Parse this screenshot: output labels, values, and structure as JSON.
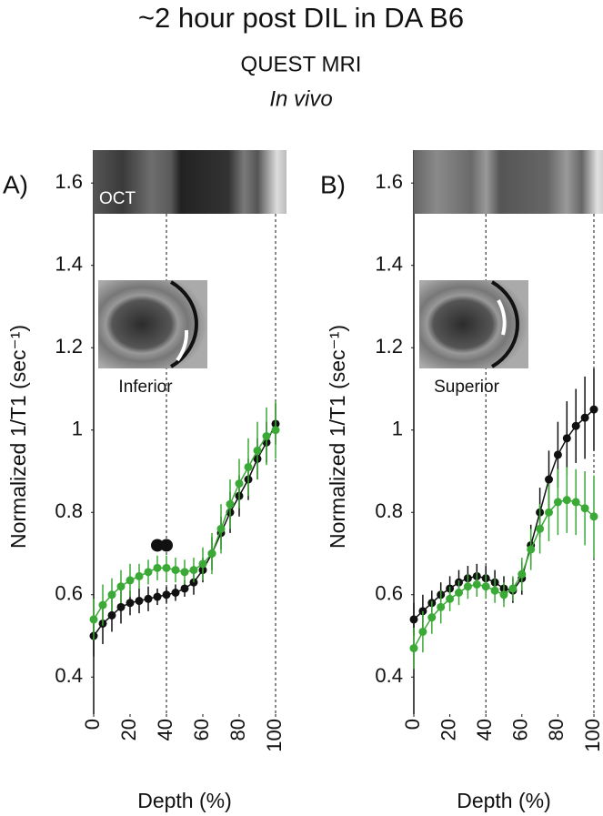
{
  "header": {
    "title": "~2 hour post DIL in DA B6",
    "subtitle": "QUEST MRI",
    "note": "In vivo"
  },
  "chart_data": [
    {
      "type": "line",
      "panel_label": "A)",
      "image_label": "OCT",
      "inset_label": "Inferior",
      "x_label": "Depth (%)",
      "y_label": "Normalized 1/T1 (sec⁻¹)",
      "x": [
        0,
        5,
        10,
        15,
        20,
        25,
        30,
        35,
        40,
        45,
        50,
        55,
        60,
        65,
        70,
        75,
        80,
        85,
        90,
        95,
        100
      ],
      "series": [
        {
          "color": "#111111",
          "values": [
            0.5,
            0.53,
            0.55,
            0.57,
            0.58,
            0.585,
            0.59,
            0.595,
            0.6,
            0.605,
            0.615,
            0.63,
            0.66,
            0.7,
            0.75,
            0.8,
            0.84,
            0.88,
            0.93,
            0.97,
            1.015
          ],
          "errors": [
            0.05,
            0.05,
            0.04,
            0.04,
            0.03,
            0.03,
            0.03,
            0.02,
            0.02,
            0.02,
            0.02,
            0.03,
            0.03,
            0.04,
            0.04,
            0.05,
            0.05,
            0.05,
            0.05,
            0.05,
            0.05
          ]
        },
        {
          "color": "#3aa935",
          "values": [
            0.54,
            0.575,
            0.6,
            0.62,
            0.635,
            0.645,
            0.655,
            0.665,
            0.665,
            0.66,
            0.655,
            0.66,
            0.675,
            0.7,
            0.76,
            0.82,
            0.87,
            0.91,
            0.95,
            0.985,
            1.0
          ],
          "errors": [
            0.05,
            0.05,
            0.04,
            0.04,
            0.04,
            0.03,
            0.03,
            0.03,
            0.03,
            0.03,
            0.03,
            0.03,
            0.04,
            0.05,
            0.06,
            0.06,
            0.06,
            0.07,
            0.07,
            0.07,
            0.07
          ]
        }
      ],
      "significance": [
        {
          "x": 35,
          "y": 0.72
        },
        {
          "x": 40,
          "y": 0.72
        }
      ],
      "vlines": [
        40,
        100
      ],
      "xlim": [
        0,
        100
      ],
      "xticks": [
        0,
        20,
        40,
        60,
        80,
        100
      ],
      "ylim": [
        0.31,
        1.68
      ],
      "yticks": [
        0.4,
        0.6,
        0.8,
        1.0,
        1.2,
        1.4,
        1.6
      ]
    },
    {
      "type": "line",
      "panel_label": "B)",
      "inset_label": "Superior",
      "x_label": "Depth (%)",
      "y_label": "Normalized 1/T1 (sec⁻¹)",
      "x": [
        0,
        5,
        10,
        15,
        20,
        25,
        30,
        35,
        40,
        45,
        50,
        55,
        60,
        65,
        70,
        75,
        80,
        85,
        90,
        95,
        100
      ],
      "series": [
        {
          "color": "#111111",
          "values": [
            0.54,
            0.56,
            0.58,
            0.6,
            0.615,
            0.63,
            0.64,
            0.645,
            0.64,
            0.63,
            0.615,
            0.61,
            0.64,
            0.72,
            0.8,
            0.88,
            0.94,
            0.98,
            1.01,
            1.03,
            1.05
          ],
          "errors": [
            0.04,
            0.04,
            0.03,
            0.03,
            0.03,
            0.03,
            0.03,
            0.03,
            0.03,
            0.03,
            0.03,
            0.03,
            0.04,
            0.05,
            0.06,
            0.07,
            0.08,
            0.09,
            0.09,
            0.1,
            0.1
          ]
        },
        {
          "color": "#3aa935",
          "values": [
            0.47,
            0.51,
            0.545,
            0.57,
            0.59,
            0.605,
            0.62,
            0.625,
            0.62,
            0.61,
            0.6,
            0.615,
            0.65,
            0.71,
            0.76,
            0.8,
            0.825,
            0.83,
            0.825,
            0.81,
            0.79
          ],
          "errors": [
            0.05,
            0.05,
            0.04,
            0.04,
            0.03,
            0.03,
            0.03,
            0.03,
            0.03,
            0.03,
            0.03,
            0.03,
            0.04,
            0.05,
            0.06,
            0.07,
            0.08,
            0.08,
            0.08,
            0.09,
            0.1
          ]
        }
      ],
      "vlines": [
        40,
        100
      ],
      "xlim": [
        0,
        100
      ],
      "xticks": [
        0,
        20,
        40,
        60,
        80,
        100
      ],
      "ylim": [
        0.31,
        1.68
      ],
      "yticks": [
        0.4,
        0.6,
        0.8,
        1.0,
        1.2,
        1.4,
        1.6
      ]
    }
  ]
}
